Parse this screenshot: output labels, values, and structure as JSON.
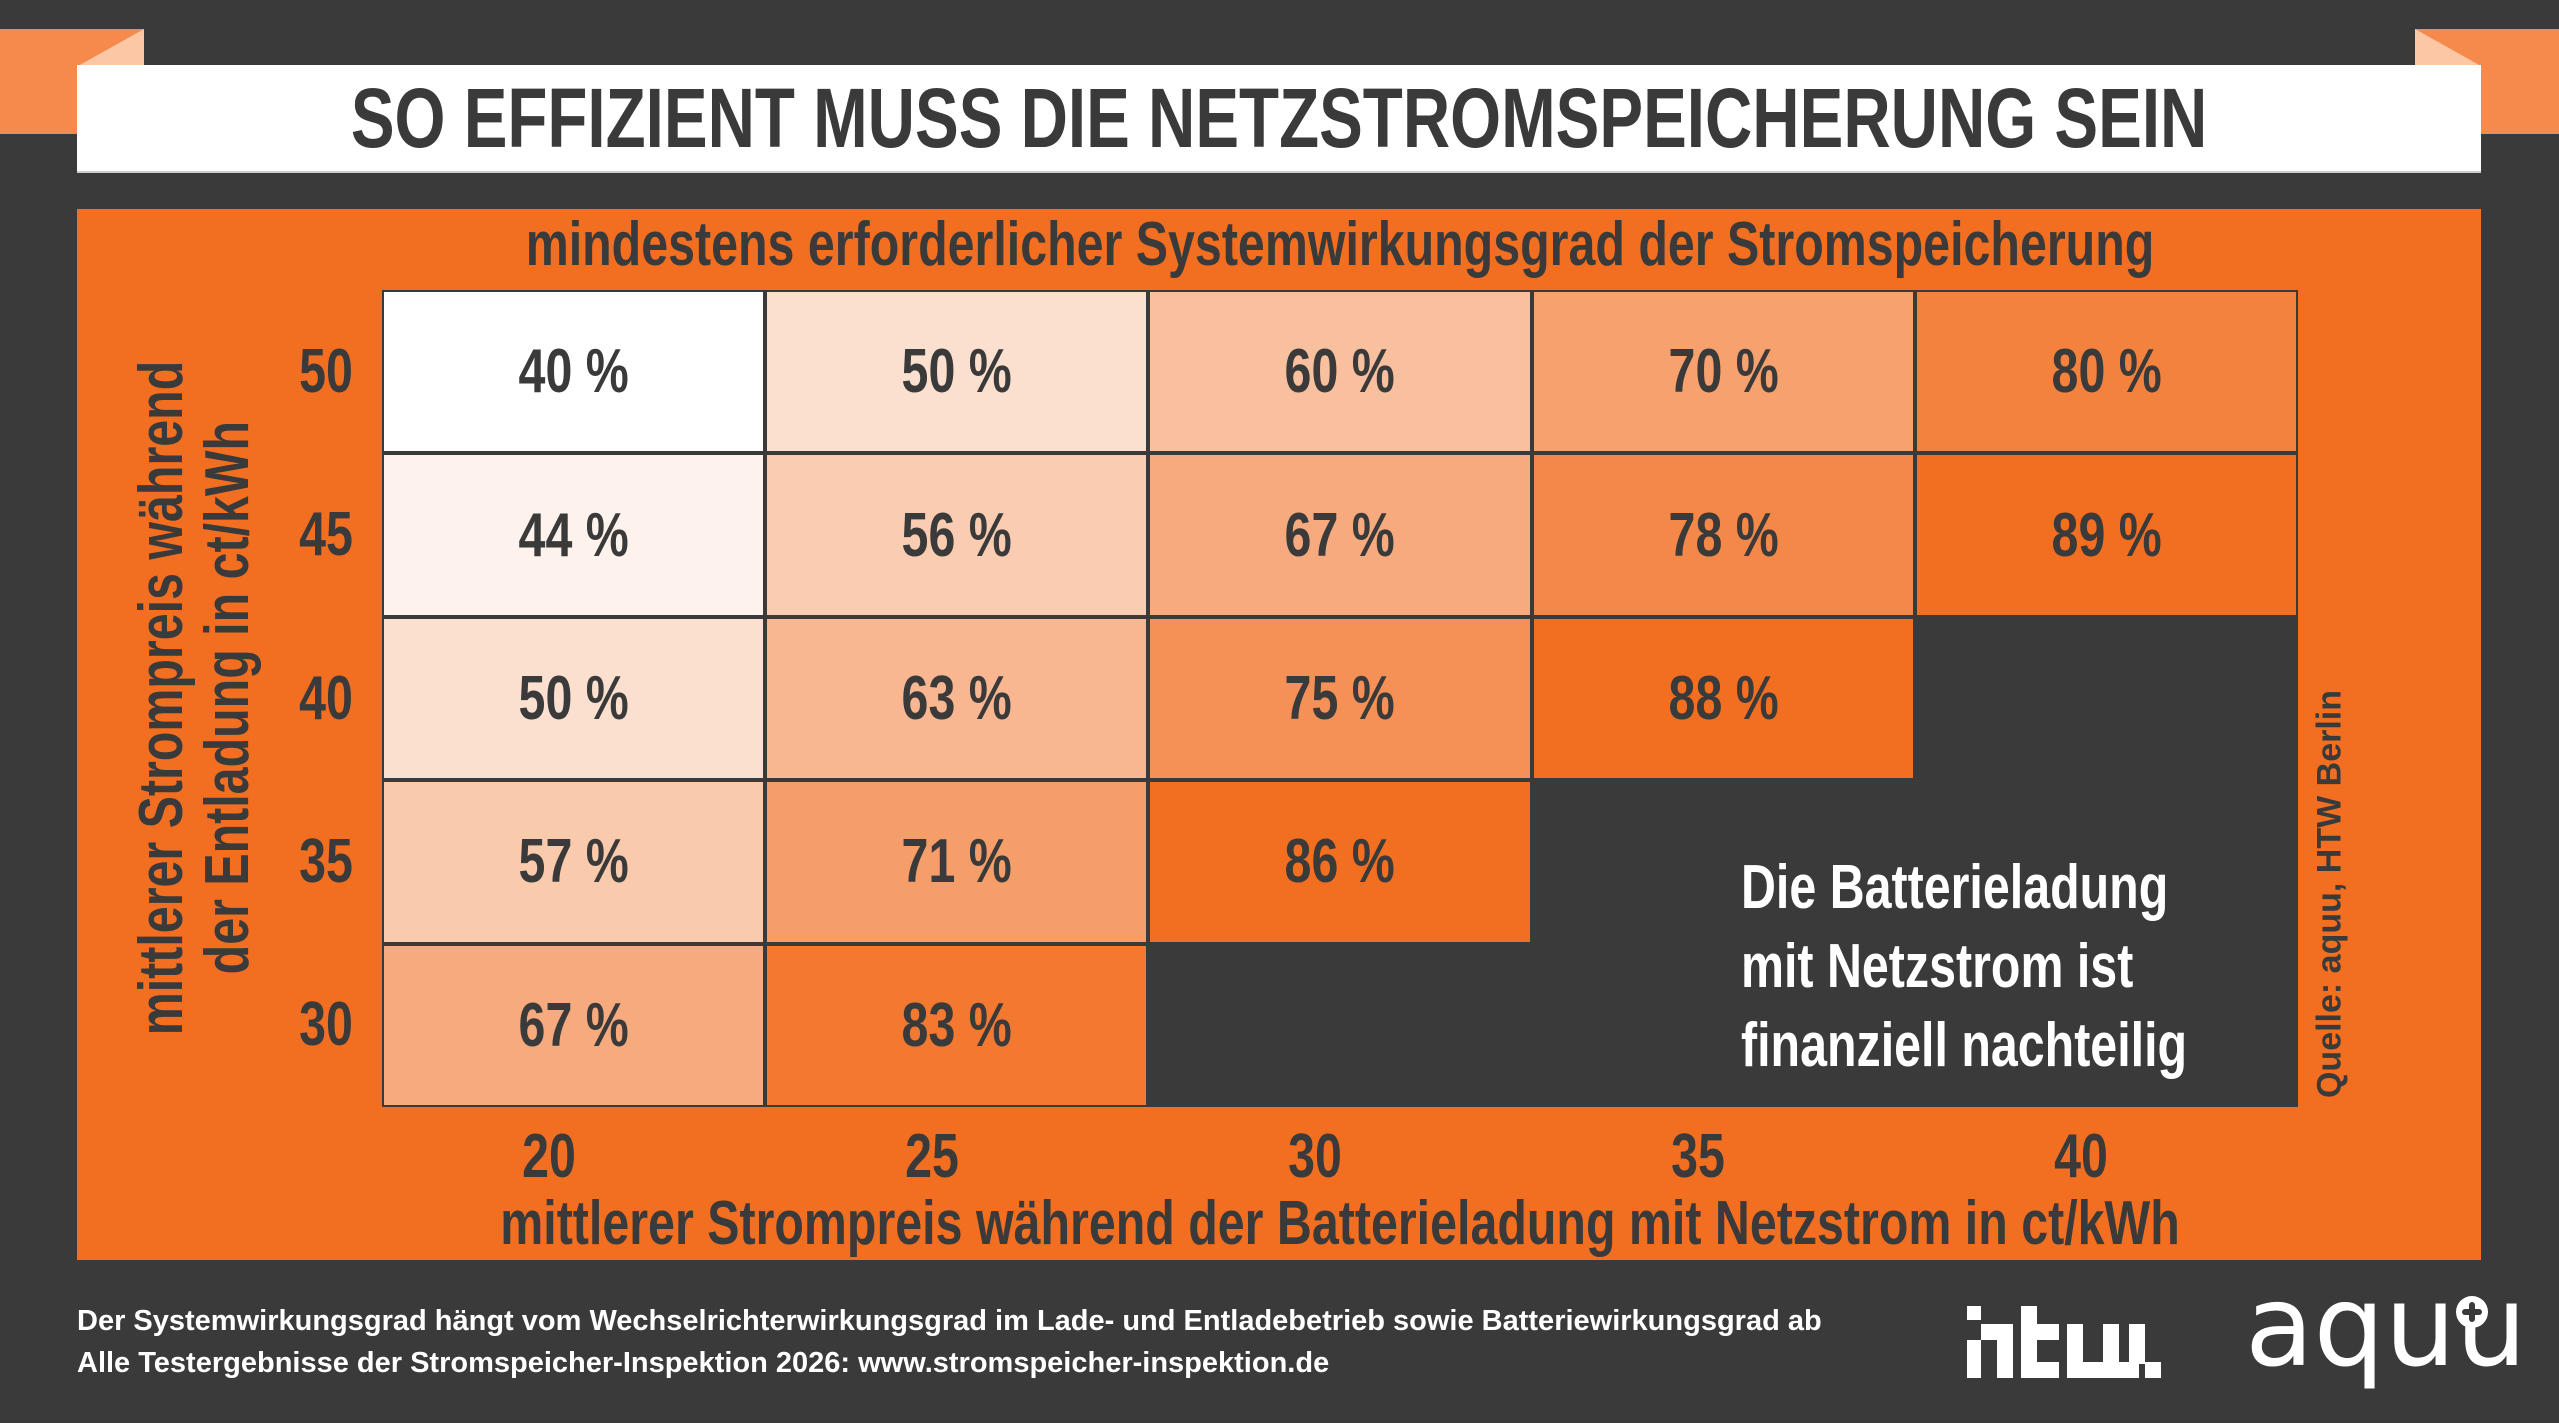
{
  "title": "SO EFFIZIENT MUSS DIE NETZSTROMSPEICHERUNG SEIN",
  "colors": {
    "background": "#3a3a3a",
    "accent": "#f26f22",
    "cell_low": "#ffffff",
    "cell_high": "#f26f22",
    "text": "#3a3a3a"
  },
  "chart_data": {
    "type": "heatmap",
    "title": "mindestens erforderlicher Systemwirkungsgrad der Stromspeicherung",
    "xlabel": "mittlerer Strompreis während der Batterieladung mit Netzstrom in ct/kWh",
    "ylabel_lines": [
      "mittlerer Strompreis während",
      "der Entladung in ct/kWh"
    ],
    "x": [
      "20",
      "25",
      "30",
      "35",
      "40"
    ],
    "y": [
      "50",
      "45",
      "40",
      "35",
      "30"
    ],
    "unit": "%",
    "values": [
      [
        40,
        50,
        60,
        70,
        80
      ],
      [
        44,
        56,
        67,
        78,
        89
      ],
      [
        50,
        63,
        75,
        88,
        null
      ],
      [
        57,
        71,
        86,
        null,
        null
      ],
      [
        67,
        83,
        null,
        null,
        null
      ]
    ],
    "empty_region_note": [
      "Die Batterieladung",
      "mit Netzstrom ist",
      "finanziell nachteilig"
    ],
    "source": "Quelle: aquu, HTW Berlin"
  },
  "footer": {
    "line1": "Der Systemwirkungsgrad hängt vom Wechselrichterwirkungsgrad im Lade- und Entladebetrieb sowie Batteriewirkungsgrad ab",
    "line2": "Alle Testergebnisse der Stromspeicher-Inspektion 2026: www.stromspeicher-inspektion.de"
  },
  "logos": {
    "htw": "htw.",
    "aquu": "aquu"
  }
}
